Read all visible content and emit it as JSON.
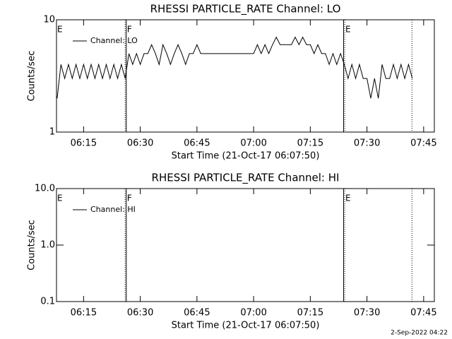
{
  "chart_data": [
    {
      "type": "line",
      "title": "RHESSI PARTICLE_RATE Channel: LO",
      "x_label": "Start Time (21-Oct-17 06:07:50)",
      "y_label": "Counts/sec",
      "log_y": true,
      "xlim": [
        7.83,
        107.83
      ],
      "ylim": [
        1,
        10
      ],
      "xticks": [
        {
          "value": 15,
          "label": "06:15"
        },
        {
          "value": 30,
          "label": "06:30"
        },
        {
          "value": 45,
          "label": "06:45"
        },
        {
          "value": 60,
          "label": "07:00"
        },
        {
          "value": 75,
          "label": "07:15"
        },
        {
          "value": 90,
          "label": "07:30"
        },
        {
          "value": 105,
          "label": "07:45"
        }
      ],
      "yticks": [
        1,
        10
      ],
      "x": [
        8,
        9,
        10,
        11,
        12,
        13,
        14,
        15,
        16,
        17,
        18,
        19,
        20,
        21,
        22,
        23,
        24,
        25,
        26,
        27,
        28,
        29,
        30,
        31,
        32,
        33,
        34,
        35,
        36,
        37,
        38,
        39,
        40,
        41,
        42,
        43,
        44,
        45,
        46,
        47,
        48,
        49,
        50,
        51,
        52,
        53,
        54,
        55,
        56,
        57,
        58,
        59,
        60,
        61,
        62,
        63,
        64,
        65,
        66,
        67,
        68,
        69,
        70,
        71,
        72,
        73,
        74,
        75,
        76,
        77,
        78,
        79,
        80,
        81,
        82,
        83,
        84,
        85,
        86,
        87,
        88,
        89,
        90,
        91,
        92,
        93,
        94,
        95,
        96,
        97,
        98,
        99,
        100,
        101,
        102
      ],
      "series": [
        {
          "name": "Channel: LO",
          "color": "#000000",
          "values": [
            2,
            4,
            3,
            4,
            3,
            4,
            3,
            4,
            3,
            4,
            3,
            4,
            3,
            4,
            3,
            4,
            3,
            4,
            3,
            5,
            4,
            5,
            4,
            5,
            5,
            6,
            5,
            4,
            6,
            5,
            4,
            5,
            6,
            5,
            4,
            5,
            5,
            6,
            5,
            5,
            5,
            5,
            5,
            5,
            5,
            5,
            5,
            5,
            5,
            5,
            5,
            5,
            5,
            6,
            5,
            6,
            5,
            6,
            7,
            6,
            6,
            6,
            6,
            7,
            6,
            7,
            6,
            6,
            5,
            6,
            5,
            5,
            4,
            5,
            4,
            5,
            4,
            3,
            4,
            3,
            4,
            3,
            3,
            2,
            3,
            2,
            4,
            3,
            3,
            4,
            3,
            4,
            3,
            4,
            3
          ]
        }
      ],
      "vlines": [
        {
          "x": 26.0,
          "style": "dotted"
        },
        {
          "x": 26.3,
          "style": "solid"
        },
        {
          "x": 83.8,
          "style": "solid"
        },
        {
          "x": 84.1,
          "style": "dotted"
        },
        {
          "x": 101.9,
          "style": "dotted"
        }
      ],
      "event_labels": [
        {
          "x": 7.83,
          "label": "E"
        },
        {
          "x": 26.3,
          "label": "F"
        },
        {
          "x": 84.1,
          "label": "E"
        }
      ]
    },
    {
      "type": "line",
      "title": "RHESSI PARTICLE_RATE Channel: HI",
      "x_label": "Start Time (21-Oct-17 06:07:50)",
      "y_label": "Counts/sec",
      "log_y": true,
      "xlim": [
        7.83,
        107.83
      ],
      "ylim": [
        0.1,
        10
      ],
      "xticks": [
        {
          "value": 15,
          "label": "06:15"
        },
        {
          "value": 30,
          "label": "06:30"
        },
        {
          "value": 45,
          "label": "06:45"
        },
        {
          "value": 60,
          "label": "07:00"
        },
        {
          "value": 75,
          "label": "07:15"
        },
        {
          "value": 90,
          "label": "07:30"
        },
        {
          "value": 105,
          "label": "07:45"
        }
      ],
      "yticks": [
        0.1,
        {
          "value": 1,
          "label": "1.0"
        },
        {
          "value": 10,
          "label": "10.0"
        }
      ],
      "x": [],
      "series": [
        {
          "name": "Channel: HI",
          "color": "#000000",
          "values": []
        }
      ],
      "vlines": [
        {
          "x": 26.0,
          "style": "dotted"
        },
        {
          "x": 26.3,
          "style": "solid"
        },
        {
          "x": 83.8,
          "style": "solid"
        },
        {
          "x": 84.1,
          "style": "dotted"
        },
        {
          "x": 101.9,
          "style": "dotted"
        }
      ],
      "event_labels": [
        {
          "x": 7.83,
          "label": "E"
        },
        {
          "x": 26.3,
          "label": "F"
        },
        {
          "x": 84.1,
          "label": "E"
        }
      ]
    }
  ],
  "footer": "2-Sep-2022 04:22"
}
